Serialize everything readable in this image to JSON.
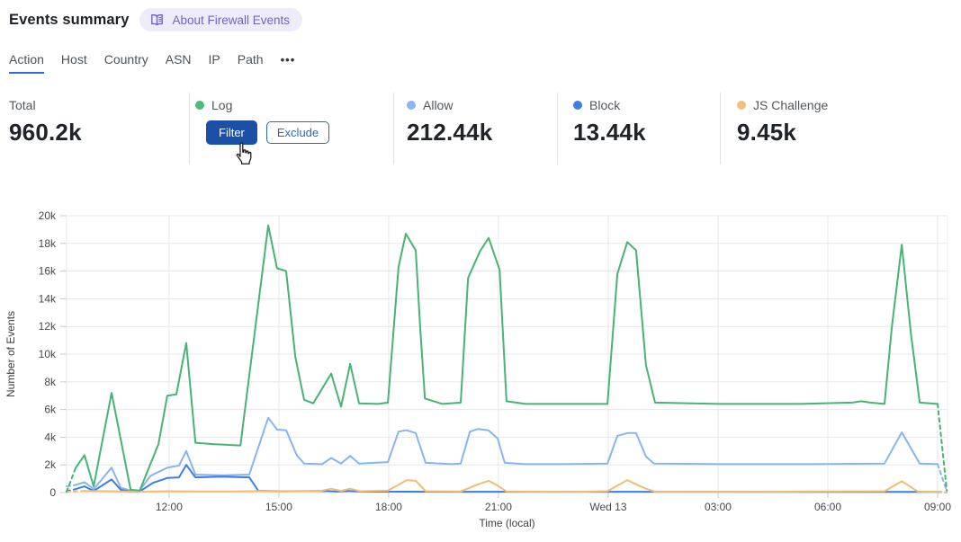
{
  "header": {
    "title": "Events summary",
    "about_label": "About Firewall Events"
  },
  "tabs": {
    "items": [
      "Action",
      "Host",
      "Country",
      "ASN",
      "IP",
      "Path"
    ],
    "active": "Action",
    "more_label": "•••"
  },
  "stats": {
    "total_label": "Total",
    "total_value": "960.2k",
    "log": {
      "label": "Log",
      "color": "#4eba7b",
      "filter_label": "Filter",
      "exclude_label": "Exclude"
    },
    "allow": {
      "label": "Allow",
      "color": "#8ab6f2",
      "value": "212.44k"
    },
    "block": {
      "label": "Block",
      "color": "#3d7ee8",
      "value": "13.44k"
    },
    "js_challenge": {
      "label": "JS Challenge",
      "color": "#f2c078",
      "value": "9.45k"
    }
  },
  "chart_data": {
    "type": "line",
    "title": "",
    "xlabel": "Time (local)",
    "ylabel": "Number of Events",
    "ylim": [
      0,
      20000
    ],
    "x_range_hours": [
      0,
      24.07
    ],
    "grid": true,
    "legend_position": "stats-row-above-chart",
    "dashed_ends": true,
    "y_ticks": [
      {
        "v": 0,
        "label": "0"
      },
      {
        "v": 2000,
        "label": "2k"
      },
      {
        "v": 4000,
        "label": "4k"
      },
      {
        "v": 6000,
        "label": "6k"
      },
      {
        "v": 8000,
        "label": "8k"
      },
      {
        "v": 10000,
        "label": "10k"
      },
      {
        "v": 12000,
        "label": "12k"
      },
      {
        "v": 14000,
        "label": "14k"
      },
      {
        "v": 16000,
        "label": "16k"
      },
      {
        "v": 18000,
        "label": "18k"
      },
      {
        "v": 20000,
        "label": "20k"
      }
    ],
    "x_ticks": [
      {
        "t": 2.8,
        "label": "12:00"
      },
      {
        "t": 5.8,
        "label": "15:00"
      },
      {
        "t": 8.8,
        "label": "18:00"
      },
      {
        "t": 11.8,
        "label": "21:00"
      },
      {
        "t": 14.8,
        "label": "Wed 13"
      },
      {
        "t": 17.8,
        "label": "03:00"
      },
      {
        "t": 20.8,
        "label": "06:00"
      },
      {
        "t": 23.8,
        "label": "09:00"
      }
    ],
    "series": [
      {
        "name": "Allow",
        "color": "#87b5f1",
        "points": [
          [
            0,
            450
          ],
          [
            0.25,
            550
          ],
          [
            0.49,
            750
          ],
          [
            0.74,
            250
          ],
          [
            1.23,
            1800
          ],
          [
            1.48,
            350
          ],
          [
            1.75,
            150
          ],
          [
            1.99,
            120
          ],
          [
            2.29,
            1200
          ],
          [
            2.75,
            1800
          ],
          [
            3.07,
            1950
          ],
          [
            3.27,
            3000
          ],
          [
            3.52,
            1300
          ],
          [
            4.25,
            1250
          ],
          [
            4.99,
            1300
          ],
          [
            5.51,
            5400
          ],
          [
            5.75,
            4550
          ],
          [
            6.0,
            4500
          ],
          [
            6.29,
            2700
          ],
          [
            6.49,
            2100
          ],
          [
            6.98,
            2050
          ],
          [
            7.23,
            2500
          ],
          [
            7.5,
            2100
          ],
          [
            7.75,
            2650
          ],
          [
            7.99,
            2100
          ],
          [
            8.78,
            2200
          ],
          [
            9.07,
            4400
          ],
          [
            9.29,
            4500
          ],
          [
            9.54,
            4300
          ],
          [
            9.81,
            2150
          ],
          [
            10.52,
            2050
          ],
          [
            10.77,
            2100
          ],
          [
            11.02,
            4400
          ],
          [
            11.24,
            4600
          ],
          [
            11.53,
            4500
          ],
          [
            11.78,
            3900
          ],
          [
            11.97,
            2150
          ],
          [
            12.54,
            2050
          ],
          [
            13.5,
            2050
          ],
          [
            14.78,
            2100
          ],
          [
            15.05,
            4100
          ],
          [
            15.32,
            4300
          ],
          [
            15.56,
            4300
          ],
          [
            15.83,
            2600
          ],
          [
            16.05,
            2100
          ],
          [
            17.85,
            2050
          ],
          [
            20.31,
            2050
          ],
          [
            22.35,
            2100
          ],
          [
            22.82,
            4350
          ],
          [
            23.31,
            2100
          ],
          [
            23.8,
            2050
          ],
          [
            24.05,
            120
          ]
        ]
      },
      {
        "name": "Block",
        "color": "#3c7ee4",
        "points": [
          [
            0,
            100
          ],
          [
            0.25,
            250
          ],
          [
            0.49,
            450
          ],
          [
            0.74,
            120
          ],
          [
            1.23,
            950
          ],
          [
            1.48,
            200
          ],
          [
            1.75,
            60
          ],
          [
            1.99,
            60
          ],
          [
            2.36,
            700
          ],
          [
            2.75,
            1050
          ],
          [
            3.07,
            1100
          ],
          [
            3.27,
            2000
          ],
          [
            3.52,
            1100
          ],
          [
            4.25,
            1150
          ],
          [
            4.99,
            1100
          ],
          [
            5.24,
            130
          ],
          [
            5.8,
            100
          ],
          [
            7.08,
            120
          ],
          [
            7.4,
            70
          ],
          [
            7.72,
            120
          ],
          [
            8.01,
            70
          ],
          [
            10.47,
            60
          ],
          [
            15.39,
            60
          ],
          [
            20.31,
            50
          ],
          [
            22.77,
            50
          ],
          [
            23.8,
            50
          ],
          [
            24.05,
            20
          ]
        ]
      },
      {
        "name": "JS Challenge",
        "color": "#f1bd72",
        "points": [
          [
            0,
            60
          ],
          [
            0.49,
            120
          ],
          [
            1.23,
            100
          ],
          [
            1.75,
            60
          ],
          [
            2.75,
            100
          ],
          [
            3.52,
            80
          ],
          [
            4.5,
            80
          ],
          [
            5.51,
            120
          ],
          [
            6.29,
            100
          ],
          [
            6.91,
            100
          ],
          [
            7.23,
            280
          ],
          [
            7.5,
            120
          ],
          [
            7.75,
            280
          ],
          [
            8.01,
            100
          ],
          [
            8.78,
            150
          ],
          [
            9.07,
            550
          ],
          [
            9.29,
            900
          ],
          [
            9.54,
            850
          ],
          [
            9.81,
            100
          ],
          [
            10.77,
            80
          ],
          [
            11.24,
            600
          ],
          [
            11.53,
            850
          ],
          [
            11.78,
            500
          ],
          [
            12.02,
            80
          ],
          [
            13.92,
            60
          ],
          [
            14.78,
            100
          ],
          [
            15.05,
            500
          ],
          [
            15.32,
            900
          ],
          [
            15.56,
            600
          ],
          [
            15.83,
            280
          ],
          [
            16.08,
            60
          ],
          [
            19.08,
            60
          ],
          [
            22.35,
            100
          ],
          [
            22.82,
            820
          ],
          [
            23.26,
            70
          ],
          [
            23.8,
            60
          ],
          [
            24.05,
            30
          ]
        ]
      },
      {
        "name": "Log",
        "color": "#46b475",
        "points": [
          [
            0,
            50
          ],
          [
            0.25,
            1800
          ],
          [
            0.49,
            2700
          ],
          [
            0.74,
            450
          ],
          [
            1.23,
            7200
          ],
          [
            1.75,
            200
          ],
          [
            2.0,
            150
          ],
          [
            2.51,
            3500
          ],
          [
            2.75,
            7000
          ],
          [
            3.0,
            7100
          ],
          [
            3.27,
            10800
          ],
          [
            3.52,
            3600
          ],
          [
            4.01,
            3500
          ],
          [
            4.75,
            3400
          ],
          [
            5.51,
            19300
          ],
          [
            5.75,
            16200
          ],
          [
            6.0,
            16000
          ],
          [
            6.25,
            9800
          ],
          [
            6.49,
            6700
          ],
          [
            6.74,
            6450
          ],
          [
            7.23,
            8600
          ],
          [
            7.5,
            6200
          ],
          [
            7.75,
            9300
          ],
          [
            7.99,
            6450
          ],
          [
            8.51,
            6400
          ],
          [
            8.78,
            6500
          ],
          [
            9.07,
            16300
          ],
          [
            9.27,
            18700
          ],
          [
            9.54,
            17500
          ],
          [
            9.66,
            12000
          ],
          [
            9.79,
            6800
          ],
          [
            10.27,
            6400
          ],
          [
            10.77,
            6500
          ],
          [
            10.97,
            15500
          ],
          [
            11.29,
            17400
          ],
          [
            11.53,
            18400
          ],
          [
            11.83,
            16100
          ],
          [
            12.02,
            6600
          ],
          [
            12.54,
            6400
          ],
          [
            13.5,
            6400
          ],
          [
            14.78,
            6400
          ],
          [
            15.05,
            15800
          ],
          [
            15.32,
            18100
          ],
          [
            15.56,
            17500
          ],
          [
            15.83,
            9200
          ],
          [
            16.08,
            6500
          ],
          [
            17.85,
            6400
          ],
          [
            20.04,
            6400
          ],
          [
            21.47,
            6500
          ],
          [
            21.71,
            6600
          ],
          [
            21.96,
            6500
          ],
          [
            22.35,
            6400
          ],
          [
            22.55,
            12000
          ],
          [
            22.82,
            17900
          ],
          [
            23.07,
            11500
          ],
          [
            23.31,
            6500
          ],
          [
            23.8,
            6400
          ],
          [
            24.05,
            150
          ]
        ]
      }
    ]
  }
}
